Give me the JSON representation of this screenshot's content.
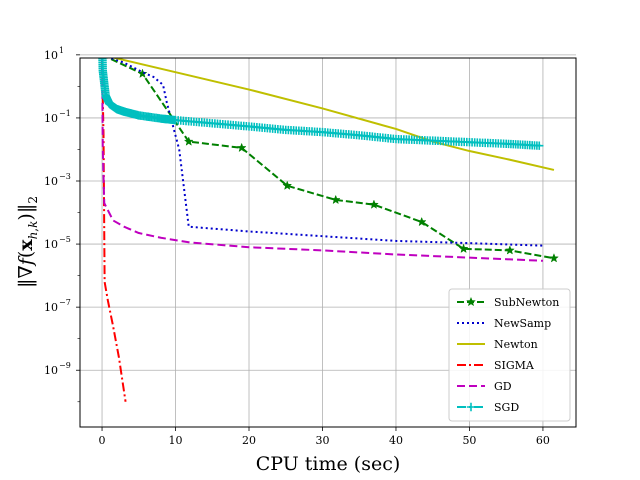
{
  "chart_data": {
    "type": "line",
    "title": "",
    "xlabel": "CPU time (sec)",
    "ylabel": "||∇f(x_{h,k})||₂",
    "xlim": [
      -3,
      64.5
    ],
    "ylim_log10": [
      -10.8,
      0.9
    ],
    "y_scale": "log",
    "grid": true,
    "legend_position": "lower right",
    "x_ticks": [
      0,
      10,
      20,
      30,
      40,
      50,
      60
    ],
    "x_tick_labels": [
      "0",
      "10",
      "20",
      "30",
      "40",
      "50",
      "60"
    ],
    "y_ticks_log10": [
      1,
      -1,
      -3,
      -5,
      -7,
      -9
    ],
    "y_tick_labels": [
      "10",
      "10",
      "10",
      "10",
      "10",
      "10"
    ],
    "y_tick_exponents": [
      "1",
      "−1",
      "−3",
      "−5",
      "−7",
      "−9"
    ],
    "series": [
      {
        "name": "SubNewton",
        "color": "#008000",
        "dash": "7,3",
        "marker": "star",
        "points": [
          [
            0,
            1
          ],
          [
            5.5,
            0.4
          ],
          [
            11.8,
            -1.75
          ],
          [
            19,
            -1.95
          ],
          [
            25.2,
            -3.15
          ],
          [
            31.8,
            -3.6
          ],
          [
            37,
            -3.75
          ],
          [
            43.5,
            -4.3
          ],
          [
            49.2,
            -5.15
          ],
          [
            55.5,
            -5.2
          ],
          [
            61.5,
            -5.45
          ]
        ]
      },
      {
        "name": "NewSamp",
        "color": "#0000cc",
        "dash": "2,3",
        "marker": "none",
        "points": [
          [
            0,
            1
          ],
          [
            3,
            0.75
          ],
          [
            5.5,
            0.45
          ],
          [
            7,
            0.3
          ],
          [
            8.3,
            0.05
          ],
          [
            8.8,
            -0.5
          ],
          [
            10.5,
            -2
          ],
          [
            11.8,
            -4.45
          ],
          [
            20,
            -4.6
          ],
          [
            30,
            -4.75
          ],
          [
            40,
            -4.9
          ],
          [
            50,
            -4.97
          ],
          [
            60,
            -5.05
          ]
        ]
      },
      {
        "name": "Newton",
        "color": "#bfbf00",
        "dash": "",
        "marker": "none",
        "points": [
          [
            0,
            1
          ],
          [
            10,
            0.45
          ],
          [
            20,
            -0.1
          ],
          [
            30,
            -0.7
          ],
          [
            40,
            -1.35
          ],
          [
            45,
            -1.75
          ],
          [
            50,
            -2.05
          ],
          [
            55,
            -2.3
          ],
          [
            61.5,
            -2.65
          ]
        ]
      },
      {
        "name": "SIGMA",
        "color": "#ff0000",
        "dash": "9,3,2,3",
        "marker": "none",
        "points": [
          [
            0,
            0.8
          ],
          [
            0.2,
            -1.5
          ],
          [
            0.35,
            -6.2
          ],
          [
            0.8,
            -6.8
          ],
          [
            1.5,
            -7.6
          ],
          [
            2.3,
            -8.6
          ],
          [
            3.2,
            -10.0
          ]
        ]
      },
      {
        "name": "GD",
        "color": "#bf00bf",
        "dash": "8,4",
        "marker": "none",
        "points": [
          [
            0,
            1
          ],
          [
            0.1,
            -2
          ],
          [
            0.3,
            -3.7
          ],
          [
            1.5,
            -4.25
          ],
          [
            3,
            -4.45
          ],
          [
            5,
            -4.65
          ],
          [
            8,
            -4.8
          ],
          [
            12,
            -4.95
          ],
          [
            20,
            -5.1
          ],
          [
            30,
            -5.2
          ],
          [
            40,
            -5.33
          ],
          [
            50,
            -5.43
          ],
          [
            60,
            -5.53
          ]
        ]
      },
      {
        "name": "SGD",
        "color": "#00bfbf",
        "dash": "9,3,2,3",
        "marker": "plus",
        "points": [
          [
            0,
            1.4
          ],
          [
            0.1,
            0.5
          ],
          [
            0.5,
            -0.3
          ],
          [
            1,
            -0.55
          ],
          [
            2,
            -0.72
          ],
          [
            3,
            -0.8
          ],
          [
            5,
            -0.92
          ],
          [
            8,
            -1.02
          ],
          [
            10,
            -1.07
          ],
          [
            15,
            -1.17
          ],
          [
            20,
            -1.27
          ],
          [
            25,
            -1.38
          ],
          [
            30,
            -1.45
          ],
          [
            35,
            -1.55
          ],
          [
            40,
            -1.67
          ],
          [
            45,
            -1.72
          ],
          [
            50,
            -1.77
          ],
          [
            55,
            -1.82
          ],
          [
            59.5,
            -1.88
          ]
        ]
      }
    ]
  }
}
